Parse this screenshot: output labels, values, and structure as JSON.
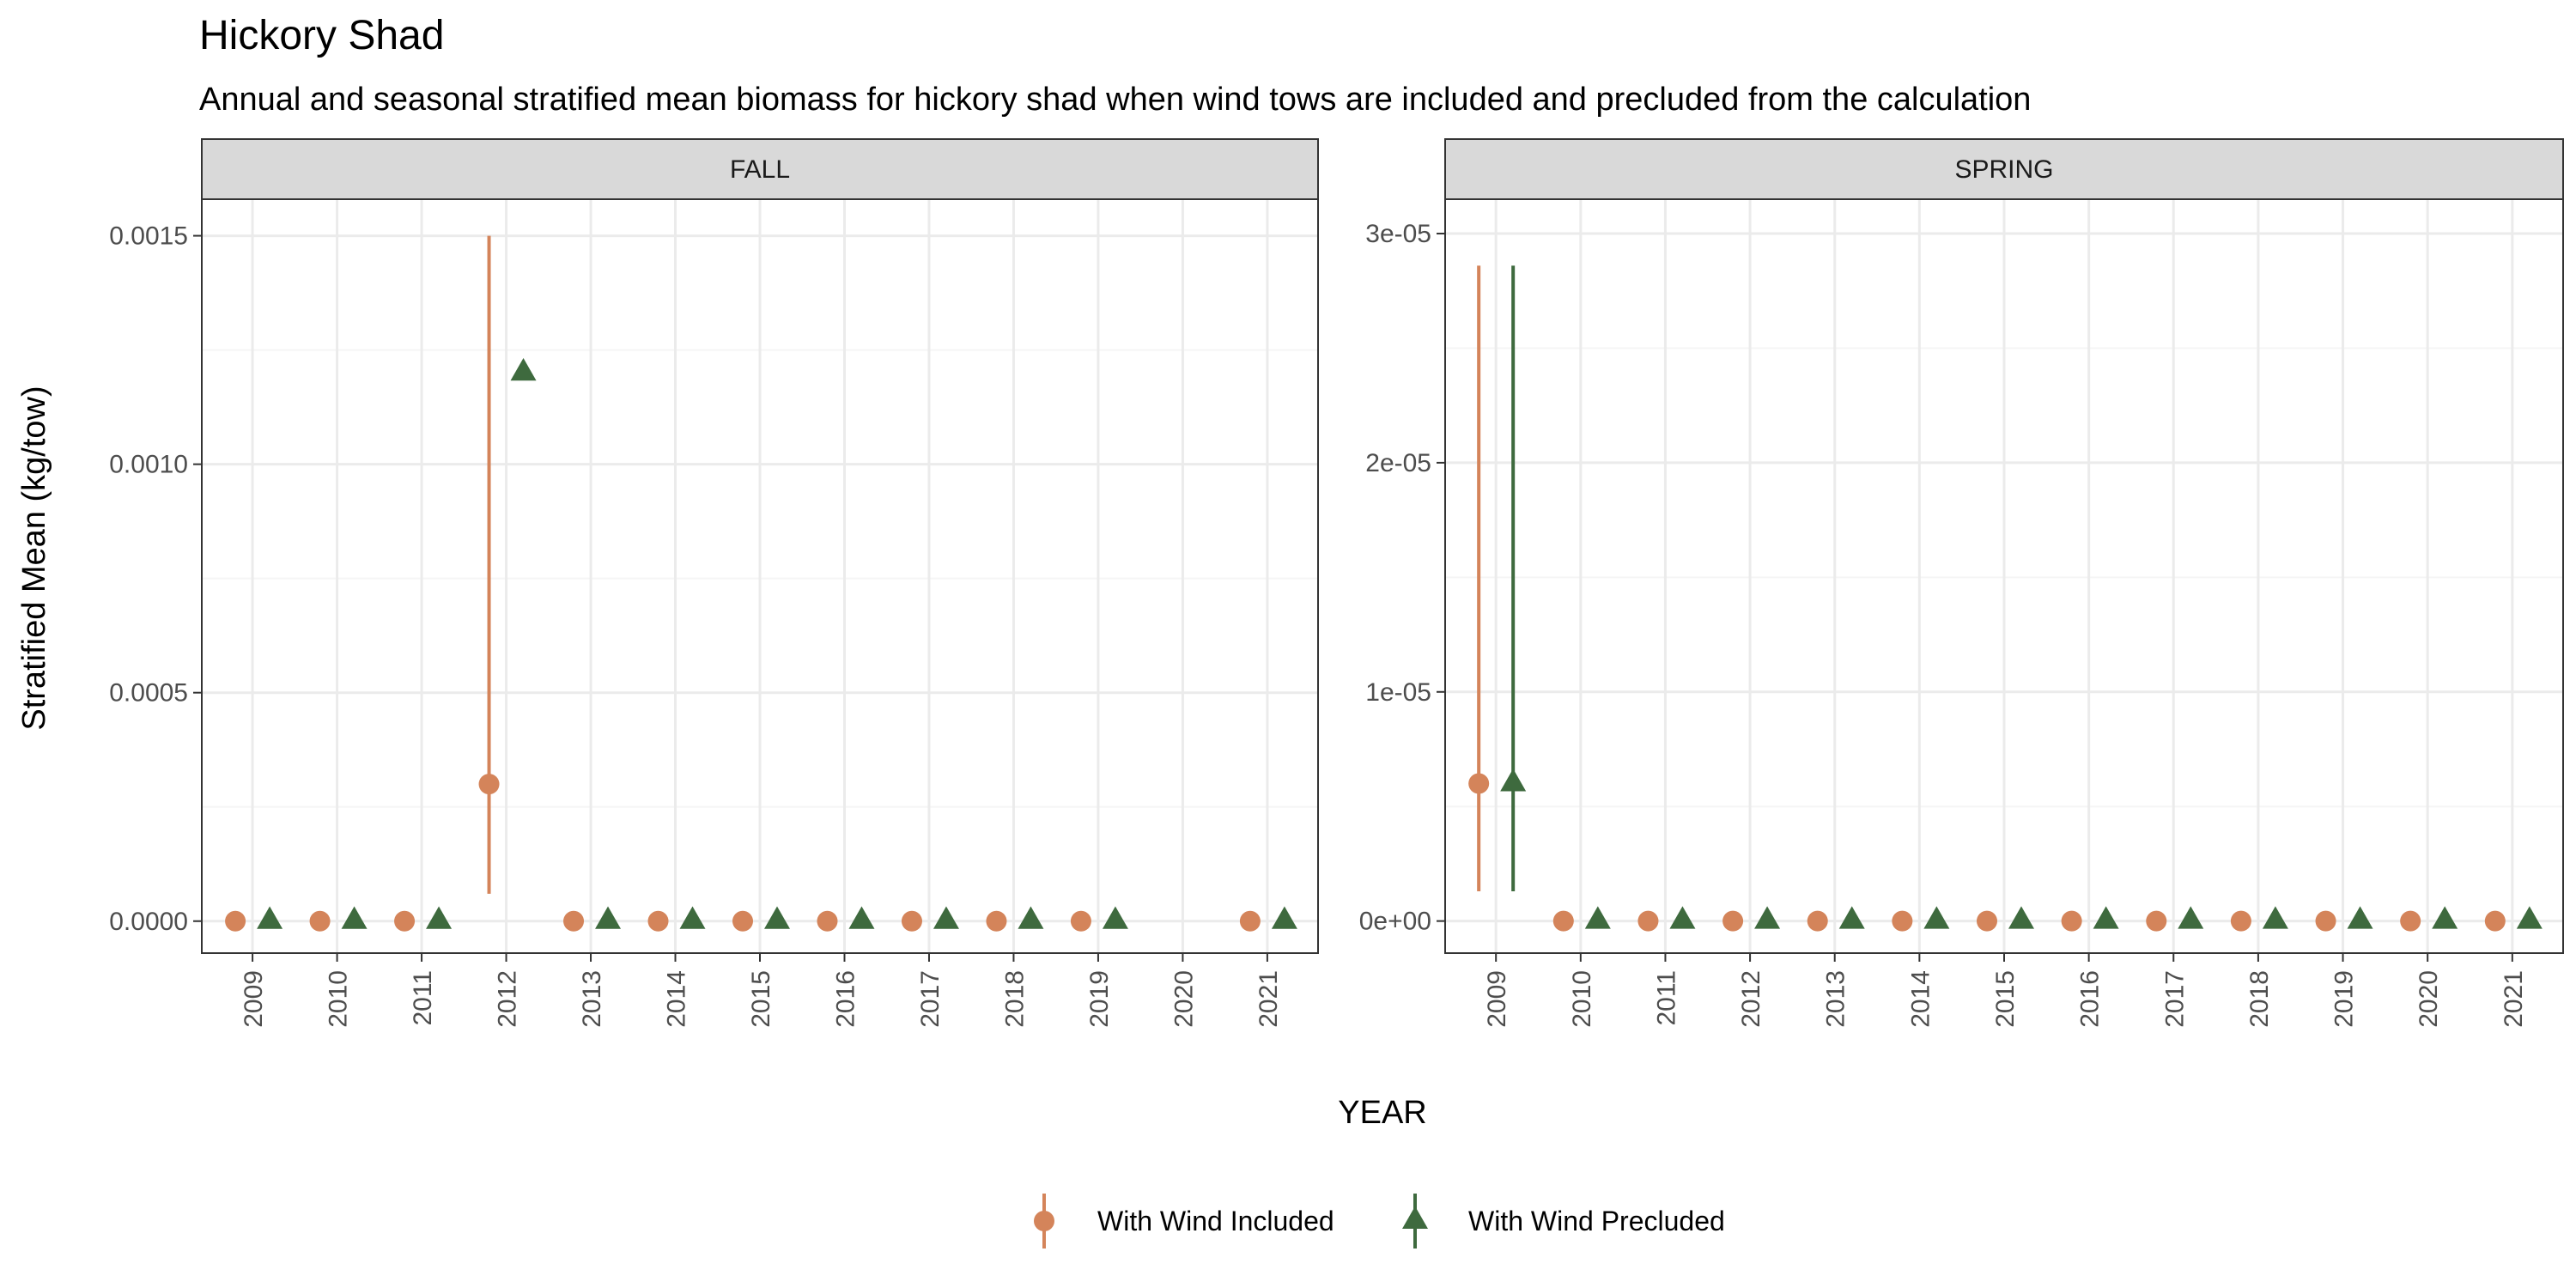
{
  "title": "Hickory Shad",
  "subtitle": "Annual and seasonal stratified mean biomass for hickory shad when wind tows are included and precluded from the calculation",
  "colors": {
    "included": "#D4845A",
    "precluded": "#3E6A3E",
    "strip_bg": "#D9D9D9",
    "grid_major": "#EBEBEB",
    "grid_minor": "#F5F5F5",
    "panel_border": "#333333"
  },
  "chart_data": {
    "type": "scatter",
    "xlabel": "YEAR",
    "ylabel": "Stratified Mean (kg/tow)",
    "years": [
      "2009",
      "2010",
      "2011",
      "2012",
      "2013",
      "2014",
      "2015",
      "2016",
      "2017",
      "2018",
      "2019",
      "2020",
      "2021"
    ],
    "legend": [
      {
        "name": "With Wind Included",
        "marker": "circle",
        "color": "#D4845A"
      },
      {
        "name": "With Wind Precluded",
        "marker": "triangle",
        "color": "#3E6A3E"
      }
    ],
    "legend_position": "bottom",
    "grid": true,
    "panels": [
      {
        "label": "FALL",
        "ylim": [
          -7e-05,
          0.00158
        ],
        "yticks": [
          0,
          0.0005,
          0.001,
          0.0015
        ],
        "ytick_labels": [
          "0.0000",
          "0.0005",
          "0.0010",
          "0.0015"
        ],
        "series": [
          {
            "name": "With Wind Included",
            "points": [
              {
                "year": "2009",
                "y": 0
              },
              {
                "year": "2010",
                "y": 0
              },
              {
                "year": "2011",
                "y": 0
              },
              {
                "year": "2012",
                "y": 0.0003,
                "lo": 6e-05,
                "hi": 0.0015
              },
              {
                "year": "2013",
                "y": 0
              },
              {
                "year": "2014",
                "y": 0
              },
              {
                "year": "2015",
                "y": 0
              },
              {
                "year": "2016",
                "y": 0
              },
              {
                "year": "2017",
                "y": 0
              },
              {
                "year": "2018",
                "y": 0
              },
              {
                "year": "2019",
                "y": 0
              },
              {
                "year": "2021",
                "y": 0
              }
            ]
          },
          {
            "name": "With Wind Precluded",
            "points": [
              {
                "year": "2009",
                "y": 0
              },
              {
                "year": "2010",
                "y": 0
              },
              {
                "year": "2011",
                "y": 0
              },
              {
                "year": "2012",
                "y": 0.0012
              },
              {
                "year": "2013",
                "y": 0
              },
              {
                "year": "2014",
                "y": 0
              },
              {
                "year": "2015",
                "y": 0
              },
              {
                "year": "2016",
                "y": 0
              },
              {
                "year": "2017",
                "y": 0
              },
              {
                "year": "2018",
                "y": 0
              },
              {
                "year": "2019",
                "y": 0
              },
              {
                "year": "2021",
                "y": 0
              }
            ]
          }
        ]
      },
      {
        "label": "SPRING",
        "ylim": [
          -1.4e-06,
          3.15e-05
        ],
        "yticks": [
          0,
          1e-05,
          2e-05,
          3e-05
        ],
        "ytick_labels": [
          "0e+00",
          "1e-05",
          "2e-05",
          "3e-05"
        ],
        "series": [
          {
            "name": "With Wind Included",
            "points": [
              {
                "year": "2009",
                "y": 6e-06,
                "lo": 1.3e-06,
                "hi": 2.86e-05
              },
              {
                "year": "2010",
                "y": 0
              },
              {
                "year": "2011",
                "y": 0
              },
              {
                "year": "2012",
                "y": 0
              },
              {
                "year": "2013",
                "y": 0
              },
              {
                "year": "2014",
                "y": 0
              },
              {
                "year": "2015",
                "y": 0
              },
              {
                "year": "2016",
                "y": 0
              },
              {
                "year": "2017",
                "y": 0
              },
              {
                "year": "2018",
                "y": 0
              },
              {
                "year": "2019",
                "y": 0
              },
              {
                "year": "2020",
                "y": 0
              },
              {
                "year": "2021",
                "y": 0
              }
            ]
          },
          {
            "name": "With Wind Precluded",
            "points": [
              {
                "year": "2009",
                "y": 6e-06,
                "lo": 1.3e-06,
                "hi": 2.86e-05
              },
              {
                "year": "2010",
                "y": 0
              },
              {
                "year": "2011",
                "y": 0
              },
              {
                "year": "2012",
                "y": 0
              },
              {
                "year": "2013",
                "y": 0
              },
              {
                "year": "2014",
                "y": 0
              },
              {
                "year": "2015",
                "y": 0
              },
              {
                "year": "2016",
                "y": 0
              },
              {
                "year": "2017",
                "y": 0
              },
              {
                "year": "2018",
                "y": 0
              },
              {
                "year": "2019",
                "y": 0
              },
              {
                "year": "2020",
                "y": 0
              },
              {
                "year": "2021",
                "y": 0
              }
            ]
          }
        ]
      }
    ]
  }
}
